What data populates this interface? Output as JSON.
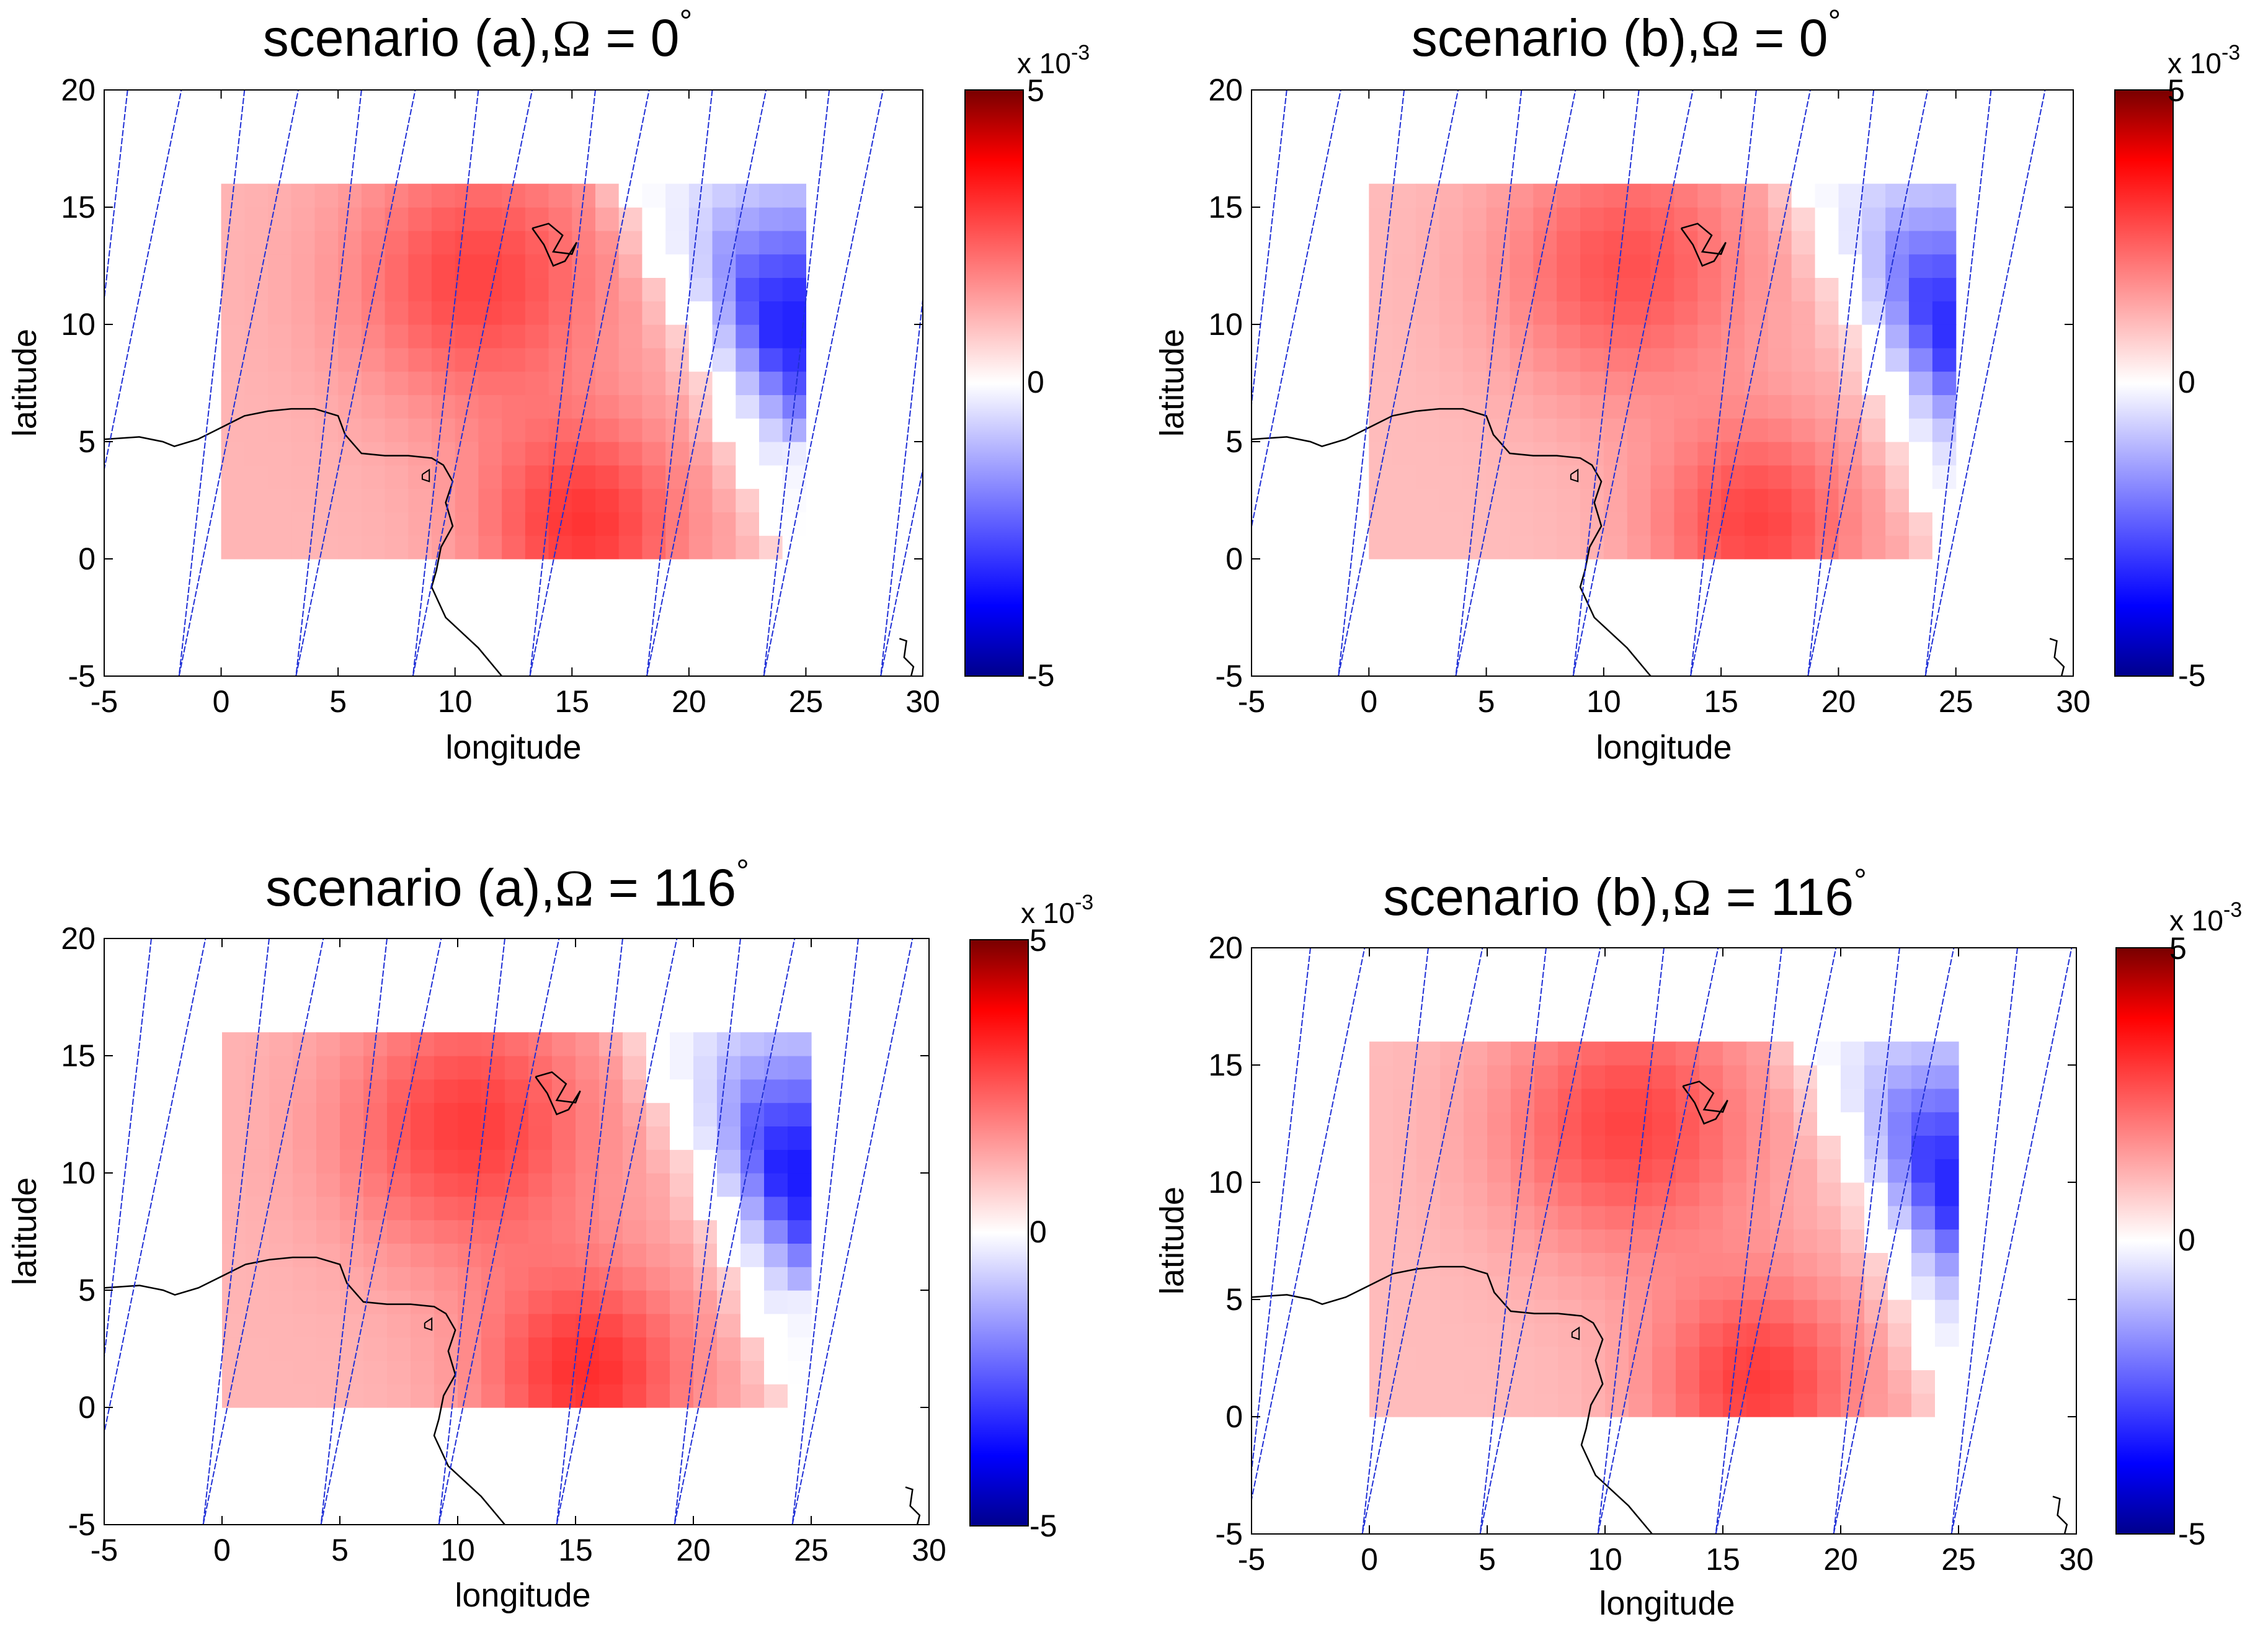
{
  "figure": {
    "colormap": {
      "negative_end": "#00008c",
      "negative_mid": "#0000ff",
      "zero": "#ffffff",
      "positive_mid": "#ff0000",
      "positive_end": "#780000",
      "track_color": "#1f2fd6",
      "coast_color": "#000000"
    }
  },
  "chart_data": [
    {
      "type": "heatmap",
      "title_prefix": "scenario (a),",
      "omega_symbol": "Ω",
      "title_suffix": " = 0",
      "degree": "°",
      "xlabel": "longitude",
      "ylabel": "latitude",
      "xlim": [
        -5,
        30
      ],
      "ylim": [
        -5,
        20
      ],
      "xticks": [
        "-5",
        "0",
        "5",
        "10",
        "15",
        "20",
        "25",
        "30"
      ],
      "yticks": [
        "-5",
        "0",
        "5",
        "10",
        "15",
        "20"
      ],
      "grid": false,
      "colorbar": {
        "range": [
          -0.005,
          0.005
        ],
        "ticks": [
          "-5",
          "0",
          "5"
        ],
        "multiplier_base": "x 10",
        "multiplier_exp": "-3"
      },
      "data_extent": {
        "lon": [
          0,
          25
        ],
        "lat": [
          0,
          16
        ]
      },
      "peaks": [
        {
          "lon": 11,
          "lat": 12,
          "value": 0.0028,
          "spread": 5.5
        },
        {
          "lon": 15.5,
          "lat": 1.5,
          "value": 0.003,
          "spread": 4.5
        },
        {
          "lon": 24.5,
          "lat": 10,
          "value": -0.0033,
          "spread": 4.0
        }
      ],
      "base_value": 0.0011,
      "diagonal_boundary": {
        "lon_at_lat16": 17.5,
        "lon_at_lat0": 24.5
      },
      "ground_tracks_lon": [
        -4,
        1,
        6,
        11,
        16,
        21,
        26,
        31
      ]
    },
    {
      "type": "heatmap",
      "title_prefix": "scenario (b),",
      "omega_symbol": "Ω",
      "title_suffix": " = 0",
      "degree": "°",
      "xlabel": "longitude",
      "ylabel": "latitude",
      "xlim": [
        -5,
        30
      ],
      "ylim": [
        -5,
        20
      ],
      "xticks": [
        "-5",
        "0",
        "5",
        "10",
        "15",
        "20",
        "25",
        "30"
      ],
      "yticks": [
        "-5",
        "0",
        "5",
        "10",
        "15",
        "20"
      ],
      "grid": false,
      "colorbar": {
        "range": [
          -0.005,
          0.005
        ],
        "ticks": [
          "-5",
          "0",
          "5"
        ],
        "multiplier_base": "x 10",
        "multiplier_exp": "-3"
      },
      "data_extent": {
        "lon": [
          0,
          25
        ],
        "lat": [
          0,
          16
        ]
      },
      "peaks": [
        {
          "lon": 11,
          "lat": 12.5,
          "value": 0.0026,
          "spread": 5.5
        },
        {
          "lon": 16.5,
          "lat": 1.5,
          "value": 0.0028,
          "spread": 4.5
        },
        {
          "lon": 24.5,
          "lat": 10,
          "value": -0.0031,
          "spread": 4.0
        }
      ],
      "base_value": 0.001,
      "diagonal_boundary": {
        "lon_at_lat16": 18.5,
        "lon_at_lat0": 25
      },
      "ground_tracks_lon": [
        -3.5,
        1.5,
        6.5,
        11.5,
        16.5,
        21.5,
        26.5
      ]
    },
    {
      "type": "heatmap",
      "title_prefix": "scenario (a),",
      "omega_symbol": "Ω",
      "title_suffix": " = 116",
      "degree": "°",
      "xlabel": "longitude",
      "ylabel": "latitude",
      "xlim": [
        -5,
        30
      ],
      "ylim": [
        -5,
        20
      ],
      "xticks": [
        "-5",
        "0",
        "5",
        "10",
        "15",
        "20",
        "25",
        "30"
      ],
      "yticks": [
        "-5",
        "0",
        "5",
        "10",
        "15",
        "20"
      ],
      "grid": false,
      "colorbar": {
        "range": [
          -0.005,
          0.005
        ],
        "ticks": [
          "-5",
          "0",
          "5"
        ],
        "multiplier_base": "x 10",
        "multiplier_exp": "-3"
      },
      "data_extent": {
        "lon": [
          0,
          25
        ],
        "lat": [
          0,
          16
        ]
      },
      "peaks": [
        {
          "lon": 10.5,
          "lat": 12,
          "value": 0.0029,
          "spread": 5.5
        },
        {
          "lon": 15.5,
          "lat": 1.5,
          "value": 0.0031,
          "spread": 4.5
        },
        {
          "lon": 24.5,
          "lat": 10,
          "value": -0.0034,
          "spread": 4.0
        }
      ],
      "base_value": 0.0011,
      "diagonal_boundary": {
        "lon_at_lat16": 18,
        "lon_at_lat0": 24.5
      },
      "ground_tracks_lon": [
        -3,
        2,
        7,
        12,
        17,
        22,
        27
      ]
    },
    {
      "type": "heatmap",
      "title_prefix": "scenario (b),",
      "omega_symbol": "Ω",
      "title_suffix": " = 116",
      "degree": "°",
      "xlabel": "longitude",
      "ylabel": "latitude",
      "xlim": [
        -5,
        30
      ],
      "ylim": [
        -5,
        20
      ],
      "xticks": [
        "-5",
        "0",
        "5",
        "10",
        "15",
        "20",
        "25",
        "30"
      ],
      "yticks": [
        "-5",
        "0",
        "5",
        "10",
        "15",
        "20"
      ],
      "grid": false,
      "colorbar": {
        "range": [
          -0.005,
          0.005
        ],
        "ticks": [
          "-5",
          "0",
          "5"
        ],
        "multiplier_base": "x 10",
        "multiplier_exp": "-3"
      },
      "data_extent": {
        "lon": [
          0,
          25
        ],
        "lat": [
          0,
          16
        ]
      },
      "peaks": [
        {
          "lon": 11,
          "lat": 12.5,
          "value": 0.0028,
          "spread": 5.5
        },
        {
          "lon": 16.5,
          "lat": 1.5,
          "value": 0.0029,
          "spread": 4.5
        },
        {
          "lon": 24.5,
          "lat": 10,
          "value": -0.0032,
          "spread": 4.0
        }
      ],
      "base_value": 0.001,
      "diagonal_boundary": {
        "lon_at_lat16": 18.5,
        "lon_at_lat0": 25
      },
      "ground_tracks_lon": [
        -2.5,
        2.5,
        7.5,
        12.5,
        17.5,
        22.5,
        27.5
      ]
    }
  ],
  "coastline": [
    [
      -5,
      5.1
    ],
    [
      -3.5,
      5.2
    ],
    [
      -2.5,
      5.0
    ],
    [
      -2,
      4.8
    ],
    [
      -1,
      5.1
    ],
    [
      0,
      5.6
    ],
    [
      1,
      6.1
    ],
    [
      2,
      6.3
    ],
    [
      3,
      6.4
    ],
    [
      4,
      6.4
    ],
    [
      5,
      6.1
    ],
    [
      5.3,
      5.3
    ],
    [
      6,
      4.5
    ],
    [
      7,
      4.4
    ],
    [
      8,
      4.4
    ],
    [
      9,
      4.3
    ],
    [
      9.5,
      4.0
    ],
    [
      9.9,
      3.3
    ],
    [
      9.6,
      2.4
    ],
    [
      9.9,
      1.4
    ],
    [
      9.4,
      0.5
    ],
    [
      9.2,
      -0.5
    ],
    [
      9,
      -1.2
    ],
    [
      9.6,
      -2.5
    ],
    [
      11,
      -3.8
    ],
    [
      12,
      -5
    ]
  ],
  "lake": [
    [
      13.3,
      14.1
    ],
    [
      14,
      14.3
    ],
    [
      14.6,
      13.8
    ],
    [
      14.2,
      13.1
    ],
    [
      15,
      13
    ],
    [
      15.2,
      13.5
    ],
    [
      14.7,
      12.7
    ],
    [
      14.2,
      12.5
    ],
    [
      13.8,
      13.4
    ],
    [
      13.3,
      14.1
    ]
  ],
  "island": [
    [
      8.6,
      3.6
    ],
    [
      8.9,
      3.8
    ],
    [
      8.9,
      3.3
    ],
    [
      8.6,
      3.4
    ],
    [
      8.6,
      3.6
    ]
  ],
  "se_coast": [
    [
      29,
      -3.4
    ],
    [
      29.3,
      -3.5
    ],
    [
      29.2,
      -4.2
    ],
    [
      29.6,
      -4.6
    ],
    [
      29.5,
      -5
    ]
  ]
}
